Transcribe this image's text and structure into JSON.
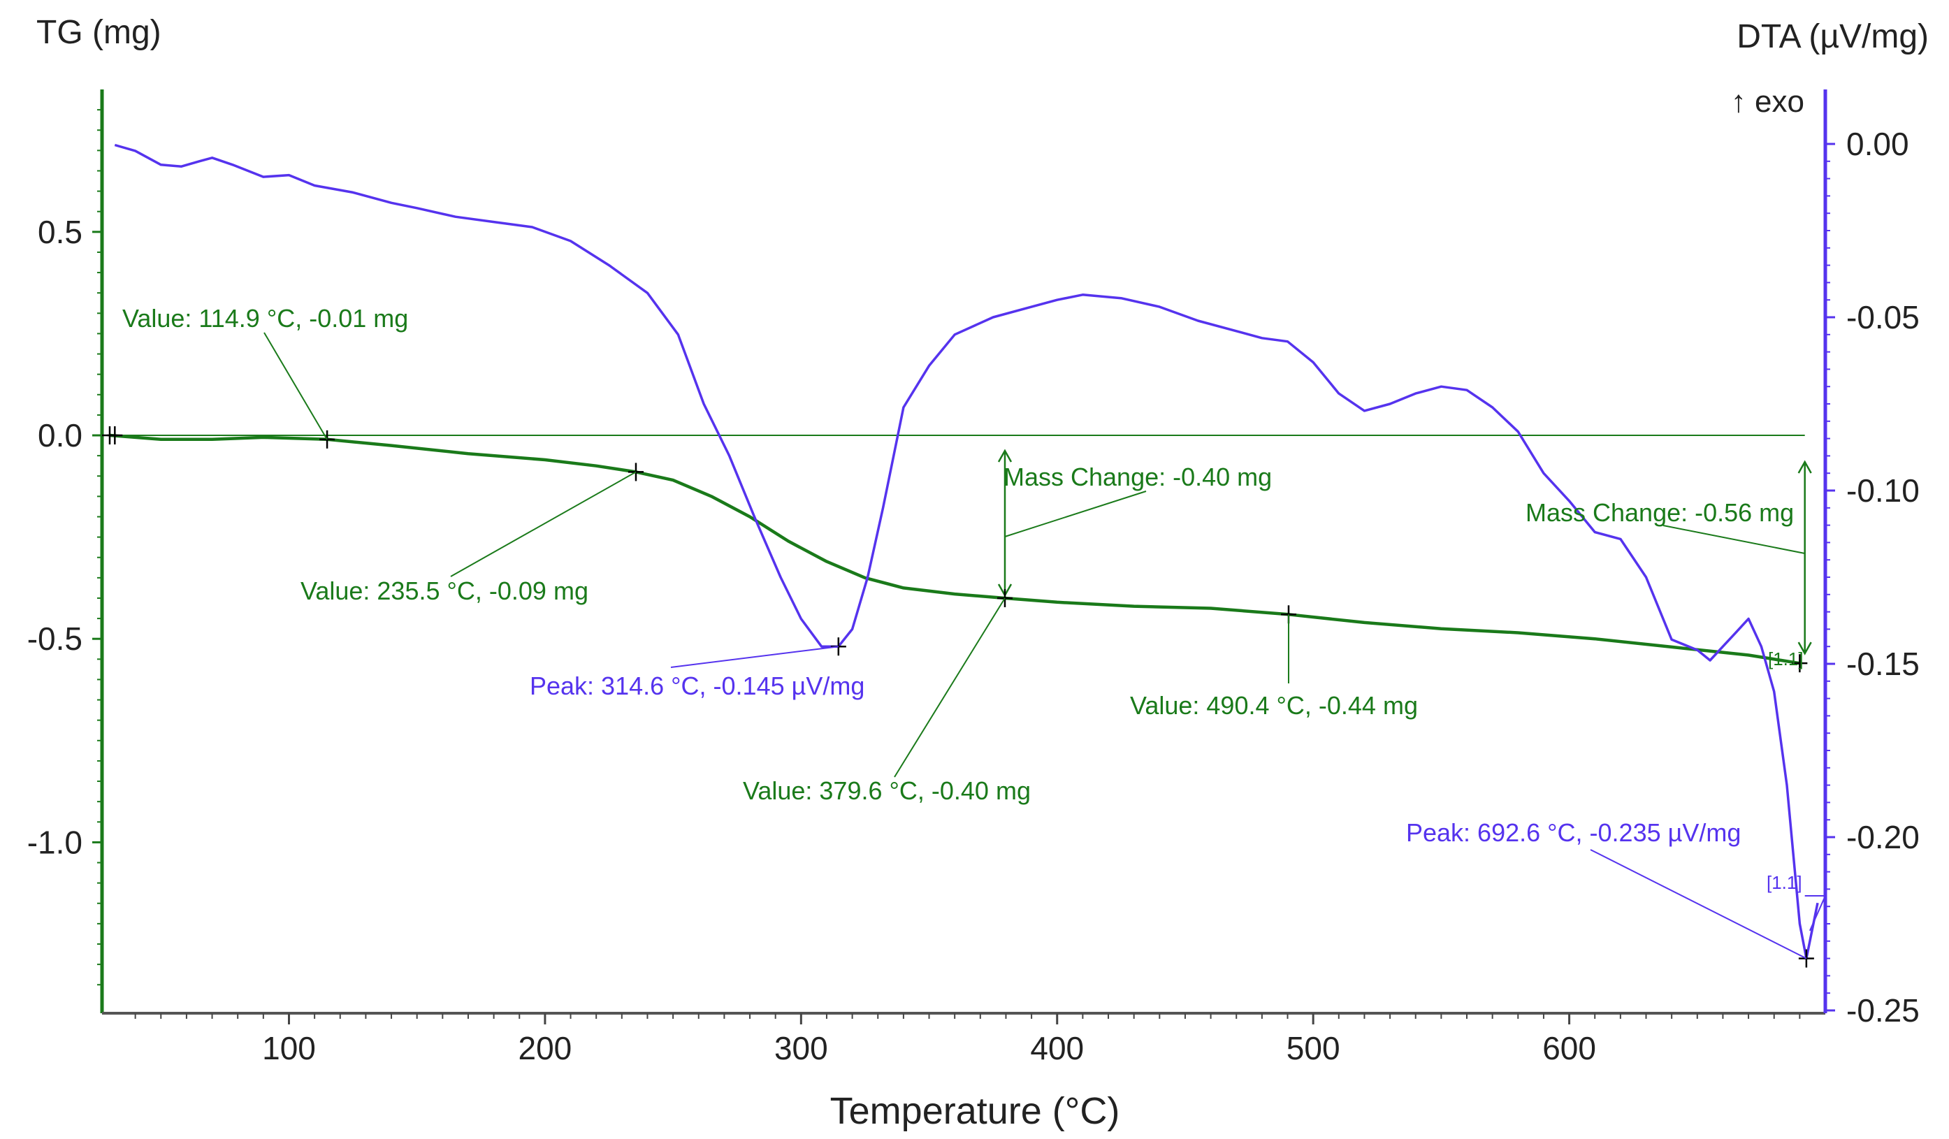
{
  "colors": {
    "tg": "#1a7a1a",
    "dta": "#5533ee",
    "marker": "#000000",
    "background": "#ffffff"
  },
  "chart_data": {
    "type": "line",
    "title": "",
    "xlabel": "Temperature (°C)",
    "ylabel_left": "TG (mg)",
    "ylabel_right": "DTA (µV/mg)",
    "exo_label": "↑ exo",
    "xlim": [
      27,
      700
    ],
    "ylim_left": [
      -1.42,
      0.85
    ],
    "ylim_right": [
      -0.25,
      0.0
    ],
    "x_ticks": [
      100,
      200,
      300,
      400,
      500,
      600
    ],
    "x_tick_labels": [
      "100",
      "200",
      "300",
      "400",
      "500",
      "600"
    ],
    "y_left_ticks": [
      0.5,
      0.0,
      -0.5,
      -1.0
    ],
    "y_left_tick_labels": [
      "0.5",
      "0.0",
      "-0.5",
      "-1.0"
    ],
    "y_right_ticks": [
      0.0,
      -0.05,
      -0.1,
      -0.15,
      -0.2,
      -0.25
    ],
    "y_right_tick_labels": [
      "0.00",
      "-0.05",
      "-0.10",
      "-0.15",
      "-0.20",
      "-0.25"
    ],
    "grid": false,
    "series": [
      {
        "axis": "left",
        "points": [
          [
            30,
            0.0
          ],
          [
            50,
            -0.01
          ],
          [
            70,
            -0.01
          ],
          [
            90,
            -0.005
          ],
          [
            114.9,
            -0.01
          ],
          [
            140,
            -0.025
          ],
          [
            170,
            -0.045
          ],
          [
            200,
            -0.06
          ],
          [
            220,
            -0.075
          ],
          [
            235.5,
            -0.09
          ],
          [
            250,
            -0.11
          ],
          [
            265,
            -0.15
          ],
          [
            280,
            -0.2
          ],
          [
            295,
            -0.26
          ],
          [
            310,
            -0.31
          ],
          [
            325,
            -0.35
          ],
          [
            340,
            -0.375
          ],
          [
            360,
            -0.39
          ],
          [
            379.6,
            -0.4
          ],
          [
            400,
            -0.41
          ],
          [
            430,
            -0.42
          ],
          [
            460,
            -0.425
          ],
          [
            490.4,
            -0.44
          ],
          [
            520,
            -0.46
          ],
          [
            550,
            -0.475
          ],
          [
            580,
            -0.485
          ],
          [
            610,
            -0.5
          ],
          [
            640,
            -0.52
          ],
          [
            670,
            -0.54
          ],
          [
            690,
            -0.56
          ]
        ]
      },
      {
        "axis": "right",
        "points": [
          [
            32,
            -0.0003
          ],
          [
            40,
            -0.002
          ],
          [
            50,
            -0.006
          ],
          [
            58,
            -0.0065
          ],
          [
            65,
            -0.005
          ],
          [
            70,
            -0.004
          ],
          [
            78,
            -0.006
          ],
          [
            90,
            -0.0095
          ],
          [
            100,
            -0.009
          ],
          [
            110,
            -0.012
          ],
          [
            125,
            -0.014
          ],
          [
            140,
            -0.017
          ],
          [
            150,
            -0.0185
          ],
          [
            165,
            -0.021
          ],
          [
            180,
            -0.0225
          ],
          [
            195,
            -0.024
          ],
          [
            210,
            -0.028
          ],
          [
            225,
            -0.035
          ],
          [
            240,
            -0.043
          ],
          [
            252,
            -0.055
          ],
          [
            262,
            -0.075
          ],
          [
            272,
            -0.09
          ],
          [
            282,
            -0.108
          ],
          [
            292,
            -0.125
          ],
          [
            300,
            -0.137
          ],
          [
            308,
            -0.145
          ],
          [
            314.6,
            -0.145
          ],
          [
            320,
            -0.14
          ],
          [
            326,
            -0.125
          ],
          [
            332,
            -0.105
          ],
          [
            340,
            -0.076
          ],
          [
            350,
            -0.064
          ],
          [
            360,
            -0.055
          ],
          [
            375,
            -0.05
          ],
          [
            390,
            -0.047
          ],
          [
            400,
            -0.045
          ],
          [
            410,
            -0.0435
          ],
          [
            425,
            -0.0445
          ],
          [
            440,
            -0.047
          ],
          [
            455,
            -0.051
          ],
          [
            470,
            -0.054
          ],
          [
            480,
            -0.056
          ],
          [
            490,
            -0.057
          ],
          [
            500,
            -0.063
          ],
          [
            510,
            -0.072
          ],
          [
            520,
            -0.077
          ],
          [
            530,
            -0.075
          ],
          [
            540,
            -0.072
          ],
          [
            550,
            -0.07
          ],
          [
            560,
            -0.071
          ],
          [
            570,
            -0.076
          ],
          [
            580,
            -0.083
          ],
          [
            590,
            -0.095
          ],
          [
            600,
            -0.103
          ],
          [
            610,
            -0.112
          ],
          [
            620,
            -0.114
          ],
          [
            630,
            -0.125
          ],
          [
            640,
            -0.143
          ],
          [
            650,
            -0.146
          ],
          [
            655,
            -0.149
          ],
          [
            660,
            -0.145
          ],
          [
            665,
            -0.141
          ],
          [
            670,
            -0.137
          ],
          [
            675,
            -0.145
          ],
          [
            680,
            -0.158
          ],
          [
            685,
            -0.185
          ],
          [
            690,
            -0.225
          ],
          [
            692.6,
            -0.235
          ],
          [
            697,
            -0.219
          ]
        ]
      }
    ],
    "markers_left": [
      [
        30,
        0.0
      ],
      [
        32,
        0.0
      ],
      [
        114.9,
        -0.01
      ],
      [
        235.5,
        -0.09
      ],
      [
        379.6,
        -0.4
      ],
      [
        490.4,
        -0.44
      ],
      [
        690,
        -0.56
      ]
    ],
    "markers_right": [
      [
        314.6,
        -0.145
      ],
      [
        692.6,
        -0.235
      ]
    ],
    "annotations": [
      {
        "text": "Value: 114.9 °C, -0.01 mg"
      },
      {
        "text": "Value: 235.5 °C, -0.09 mg"
      },
      {
        "text": "Peak: 314.6 °C, -0.145 µV/mg"
      },
      {
        "text": "Mass Change: -0.40 mg"
      },
      {
        "text": "Value: 379.6 °C, -0.40 mg"
      },
      {
        "text": "Value: 490.4 °C, -0.44 mg"
      },
      {
        "text": "Mass Change: -0.56 mg"
      },
      {
        "text": "Peak: 692.6 °C, -0.235 µV/mg"
      },
      {
        "text": "[1.1]"
      },
      {
        "text": "[1.1]"
      }
    ]
  }
}
